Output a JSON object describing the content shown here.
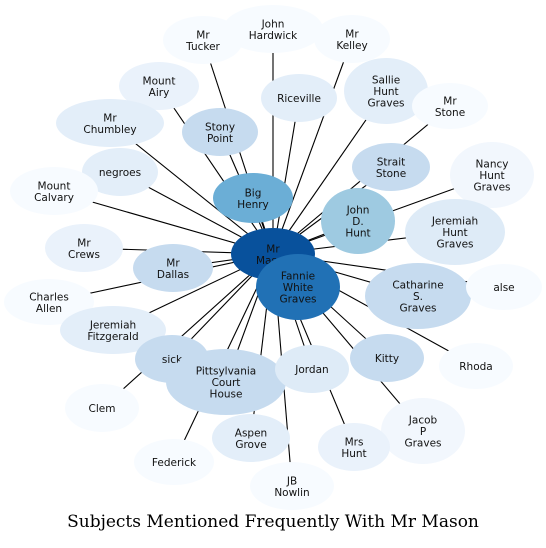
{
  "title": "Subjects Mentioned Frequently With Mr Mason",
  "center": {
    "id": "mr-mason",
    "label": "Mr\nMason",
    "color": "#08519c"
  },
  "nodes": [
    {
      "id": "mr-tucker",
      "label": "Mr\nTucker",
      "color": "#f7fbff"
    },
    {
      "id": "john-hardwick",
      "label": "John\nHardwick",
      "color": "#f7fbff"
    },
    {
      "id": "mr-kelley",
      "label": "Mr\nKelley",
      "color": "#f7fbff"
    },
    {
      "id": "mount-airy",
      "label": "Mount\nAiry",
      "color": "#eaf2fb"
    },
    {
      "id": "sallie-hunt-graves",
      "label": "Sallie\nHunt\nGraves",
      "color": "#e3eef9"
    },
    {
      "id": "mr-stone",
      "label": "Mr\nStone",
      "color": "#f7fbff"
    },
    {
      "id": "riceville",
      "label": "Riceville",
      "color": "#e3eef9"
    },
    {
      "id": "mr-chumbley",
      "label": "Mr\nChumbley",
      "color": "#e3eef9"
    },
    {
      "id": "stony-point",
      "label": "Stony\nPoint",
      "color": "#c6dbef"
    },
    {
      "id": "strait-stone",
      "label": "Strait\nStone",
      "color": "#c6dbef"
    },
    {
      "id": "nancy-hunt-graves",
      "label": "Nancy\nHunt\nGraves",
      "color": "#f2f7fd"
    },
    {
      "id": "negroes",
      "label": "negroes",
      "color": "#e3eef9"
    },
    {
      "id": "mount-calvary",
      "label": "Mount\nCalvary",
      "color": "#f7fbff"
    },
    {
      "id": "big-henry",
      "label": "Big\nHenry",
      "color": "#6baed6"
    },
    {
      "id": "john-d-hunt",
      "label": "John\nD.\nHunt",
      "color": "#9ecae1"
    },
    {
      "id": "jeremiah-hunt-graves",
      "label": "Jeremiah\nHunt\nGraves",
      "color": "#deebf7"
    },
    {
      "id": "mr-crews",
      "label": "Mr\nCrews",
      "color": "#eaf2fb"
    },
    {
      "id": "mr-dallas",
      "label": "Mr\nDallas",
      "color": "#c6dbef"
    },
    {
      "id": "fannie-white-graves",
      "label": "Fannie\nWhite\nGraves",
      "color": "#2171b5"
    },
    {
      "id": "charles-allen",
      "label": "Charles\nAllen",
      "color": "#f7fbff"
    },
    {
      "id": "catharine-s-graves",
      "label": "Catharine\nS.\nGraves",
      "color": "#c6dbef"
    },
    {
      "id": "alse",
      "label": "alse",
      "color": "#f7fbff"
    },
    {
      "id": "jeremiah-fitzgerald",
      "label": "Jeremiah\nFitzgerald",
      "color": "#e3eef9"
    },
    {
      "id": "sick",
      "label": "sick",
      "color": "#c6dbef"
    },
    {
      "id": "pittsylvania-court-house",
      "label": "Pittsylvania\nCourt\nHouse",
      "color": "#c6dbef"
    },
    {
      "id": "jordan",
      "label": "Jordan",
      "color": "#deebf7"
    },
    {
      "id": "kitty",
      "label": "Kitty",
      "color": "#c6dbef"
    },
    {
      "id": "rhoda",
      "label": "Rhoda",
      "color": "#f7fbff"
    },
    {
      "id": "clem",
      "label": "Clem",
      "color": "#f7fbff"
    },
    {
      "id": "aspen-grove",
      "label": "Aspen\nGrove",
      "color": "#e3eef9"
    },
    {
      "id": "jacob-p-graves",
      "label": "Jacob\nP\nGraves",
      "color": "#f2f7fd"
    },
    {
      "id": "federick",
      "label": "Federick",
      "color": "#f7fbff"
    },
    {
      "id": "mrs-hunt",
      "label": "Mrs\nHunt",
      "color": "#eaf2fb"
    },
    {
      "id": "jb-nowlin",
      "label": "JB\nNowlin",
      "color": "#f7fbff"
    }
  ],
  "edge_color": "#000000"
}
